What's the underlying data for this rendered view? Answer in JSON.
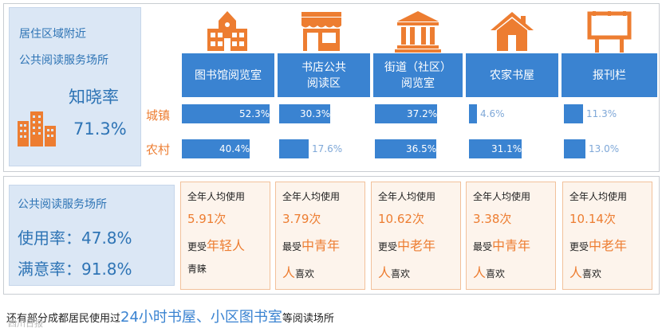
{
  "top_left": {
    "line1": "居住区域附近",
    "line2": "公共阅读服务场所",
    "metric_label": "知晓率",
    "metric_value": "71.3%"
  },
  "bottom_left": {
    "line1": "公共阅读服务场所",
    "usage": "使用率：47.8%",
    "satisfaction": "满意率：91.8%"
  },
  "chart_data": {
    "type": "bar",
    "categories": [
      "图书馆阅览室",
      "书店公共阅读区",
      "街道（社区）阅览室",
      "农家书屋",
      "报刊栏"
    ],
    "category_labels": [
      [
        "图书馆阅览室"
      ],
      [
        "书店公共",
        "阅读区"
      ],
      [
        "街道（社区）",
        "阅览室"
      ],
      [
        "农家书屋"
      ],
      [
        "报刊栏"
      ]
    ],
    "series": [
      {
        "name": "城镇",
        "values": [
          52.3,
          30.3,
          37.2,
          4.6,
          11.3
        ],
        "labels": [
          "52.3%",
          "30.3%",
          "37.2%",
          "4.6%",
          "11.3%"
        ]
      },
      {
        "name": "农村",
        "values": [
          40.4,
          17.6,
          36.5,
          31.1,
          13.0
        ],
        "labels": [
          "40.4%",
          "17.6%",
          "36.5%",
          "31.1%",
          "13.0%"
        ]
      }
    ],
    "colors": {
      "bar": "#3a83d1",
      "header": "#3a83d1",
      "accent": "#ed7d31"
    }
  },
  "cards": [
    {
      "line1": "全年人均使用",
      "value": "5.91次",
      "prefix": "更受",
      "highlight": "年轻人",
      "suffix": "青睐"
    },
    {
      "line1": "全年人均使用",
      "value": "3.79次",
      "prefix": "最受",
      "highlight": "中青年",
      "suffix": "人喜欢"
    },
    {
      "line1": "全年人均使用",
      "value": "10.62次",
      "prefix": "更受",
      "highlight": "中老年",
      "suffix": "人喜欢"
    },
    {
      "line1": "全年人均使用",
      "value": "3.38次",
      "prefix": "最受",
      "highlight": "中青年",
      "suffix": "人喜欢"
    },
    {
      "line1": "全年人均使用",
      "value": "10.14次",
      "prefix": "更受",
      "highlight": "中老年",
      "suffix": "人喜欢"
    }
  ],
  "icons": [
    "library-building-icon",
    "bookstore-icon",
    "community-hall-icon",
    "farmhouse-icon",
    "billboard-icon"
  ],
  "footnote": {
    "prefix": "还有部分成都居民使用过",
    "highlight": "24小时书屋、小区图书室",
    "suffix": "等阅读场所"
  },
  "watermark": "四川日报"
}
